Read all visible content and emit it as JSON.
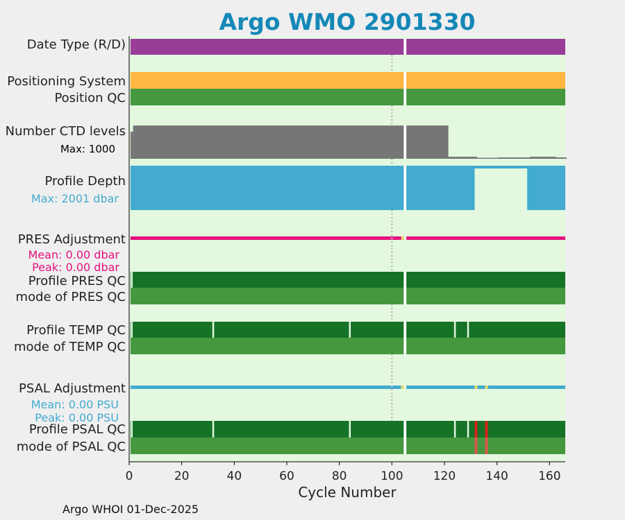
{
  "title": "Argo WMO 2901330",
  "footer": "Argo WHOI 01-Dec-2025",
  "colors": {
    "background": "#efefef",
    "panel": "#e3f8df",
    "date_type": "#9a3d98",
    "positioning": "#ffb642",
    "qc_good": "#46983f",
    "qc_profile": "#167227",
    "ctd": "#767676",
    "profile_depth": "#42abcf",
    "pres_adj": "#e4127f",
    "psal_adj": "#42abcf",
    "flag_yellow": "#ecd868",
    "flag_red": "#d4241b",
    "gap": "#ffffff",
    "marker": "#bbbbbb"
  },
  "chart_data": {
    "type": "bar",
    "title": "Argo WMO 2901330",
    "xlabel": "Cycle Number",
    "xlim": [
      0,
      166
    ],
    "xticks": [
      0,
      20,
      40,
      60,
      80,
      100,
      120,
      140,
      160
    ],
    "missing_cycle": 105,
    "marker_cycle": 100,
    "rows": [
      {
        "key": "date_type",
        "label": "Date Type (R/D)"
      },
      {
        "key": "positioning",
        "label": "Positioning System"
      },
      {
        "key": "position_qc",
        "label": "Position QC"
      },
      {
        "key": "ctd_levels",
        "label": "Number CTD levels",
        "annotation": "Max: 1000",
        "max": 1000,
        "segments": [
          [
            0,
            1,
            800
          ],
          [
            1,
            121,
            980
          ],
          [
            121,
            132,
            60
          ],
          [
            132,
            140,
            30
          ],
          [
            140,
            152,
            40
          ],
          [
            152,
            162,
            60
          ],
          [
            162,
            166,
            40
          ]
        ]
      },
      {
        "key": "profile_depth",
        "label": "Profile Depth",
        "annotation": "Max: 2001 dbar",
        "max": 2001,
        "missing_ranges": [
          [
            131.5,
            151.5
          ]
        ]
      },
      {
        "key": "pres_adj",
        "label": "PRES Adjustment",
        "annotation_mean": "Mean: 0.00 dbar",
        "annotation_peak": "Peak: 0.00 dbar",
        "flag_cycles": [
          104
        ]
      },
      {
        "key": "profile_pres_qc",
        "label": "Profile PRES QC",
        "gap_cycles": [
          1
        ]
      },
      {
        "key": "mode_pres_qc",
        "label": "mode of PRES QC"
      },
      {
        "key": "profile_temp_qc",
        "label": "Profile TEMP QC",
        "gap_cycles": [
          1,
          32,
          84,
          124,
          129
        ]
      },
      {
        "key": "mode_temp_qc",
        "label": "mode of TEMP QC"
      },
      {
        "key": "psal_adj",
        "label": "PSAL Adjustment",
        "annotation_mean": "Mean: 0.00 PSU",
        "annotation_peak": "Peak: 0.00 PSU",
        "flag_cycles": [
          104,
          132,
          136
        ]
      },
      {
        "key": "profile_psal_qc",
        "label": "Profile PSAL QC",
        "gap_cycles": [
          1,
          32,
          84,
          124,
          129
        ],
        "red_cycles": [
          132,
          136
        ]
      },
      {
        "key": "mode_psal_qc",
        "label": "mode of PSAL QC",
        "red_cycles": [
          132,
          136
        ]
      }
    ]
  }
}
